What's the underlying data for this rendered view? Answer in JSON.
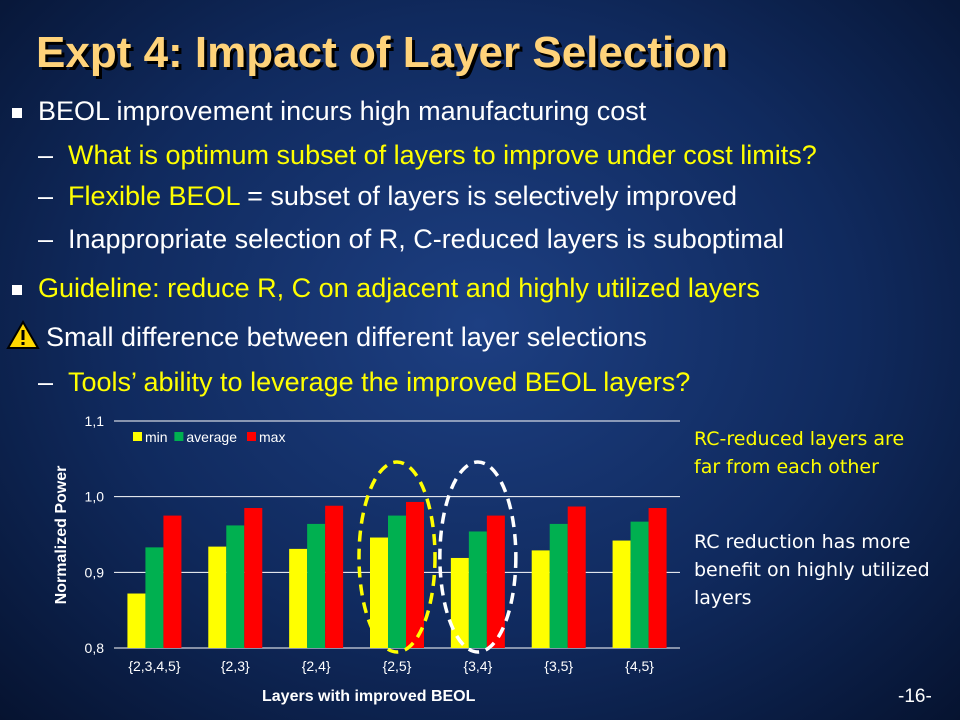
{
  "slide": {
    "title": "Expt 4: Impact of Layer Selection",
    "page_number": "-16-",
    "bullets": [
      {
        "level": 1,
        "text": "BEOL improvement incurs high manufacturing cost",
        "color": "#ffffff"
      },
      {
        "level": 2,
        "dash": "–",
        "text": "What is optimum subset of layers to improve under cost limits?",
        "color": "#ffff00"
      },
      {
        "level": 2,
        "dash": "–",
        "text_a": "Flexible BEOL",
        "text_b": " = subset of layers is selectively improved"
      },
      {
        "level": 2,
        "dash": "–",
        "text": "Inappropriate selection of R, C-reduced layers is suboptimal",
        "color": "#ffffff"
      },
      {
        "level": 1,
        "text": "Guideline: reduce R, C on adjacent and highly utilized layers",
        "color": "#ffff00"
      },
      {
        "level": 1,
        "icon": "warning-icon",
        "text": "Small difference between different layer selections",
        "color": "#ffffff"
      },
      {
        "level": 2,
        "dash": "–",
        "text": "Tools’ ability to leverage the improved BEOL layers?",
        "color": "#ffff00"
      }
    ],
    "notes": [
      {
        "lines": [
          "RC-reduced layers are",
          "far from each other"
        ],
        "color": "#ffff00"
      },
      {
        "lines": [
          "RC reduction has more",
          "benefit on highly utilized",
          "layers"
        ],
        "color": "#ffffff"
      }
    ]
  },
  "chart_data": {
    "type": "bar",
    "categories": [
      "{2,3,4,5}",
      "{2,3}",
      "{2,4}",
      "{2,5}",
      "{3,4}",
      "{3,5}",
      "{4,5}"
    ],
    "series": [
      {
        "name": "min",
        "color": "#ffff00",
        "values": [
          0.872,
          0.934,
          0.931,
          0.946,
          0.919,
          0.929,
          0.942
        ]
      },
      {
        "name": "average",
        "color": "#00b050",
        "values": [
          0.933,
          0.962,
          0.964,
          0.975,
          0.954,
          0.964,
          0.967
        ]
      },
      {
        "name": "max",
        "color": "#ff0000",
        "values": [
          0.975,
          0.985,
          0.988,
          0.993,
          0.975,
          0.987,
          0.985
        ]
      }
    ],
    "xlabel": "Layers with improved BEOL",
    "ylabel": "Normalized Power",
    "ylim": [
      0.8,
      1.1
    ],
    "yticks": [
      "0,8",
      "0,9",
      "1,0",
      "1,1"
    ],
    "ytick_values": [
      0.8,
      0.9,
      1.0,
      1.1
    ],
    "grid": true,
    "legend_position": "top-left",
    "highlights": [
      {
        "category": "{2,5}",
        "shape": "dashed-ellipse",
        "color": "#ffff00"
      },
      {
        "category": "{3,4}",
        "shape": "dashed-ellipse",
        "color": "#ffffff"
      }
    ]
  }
}
